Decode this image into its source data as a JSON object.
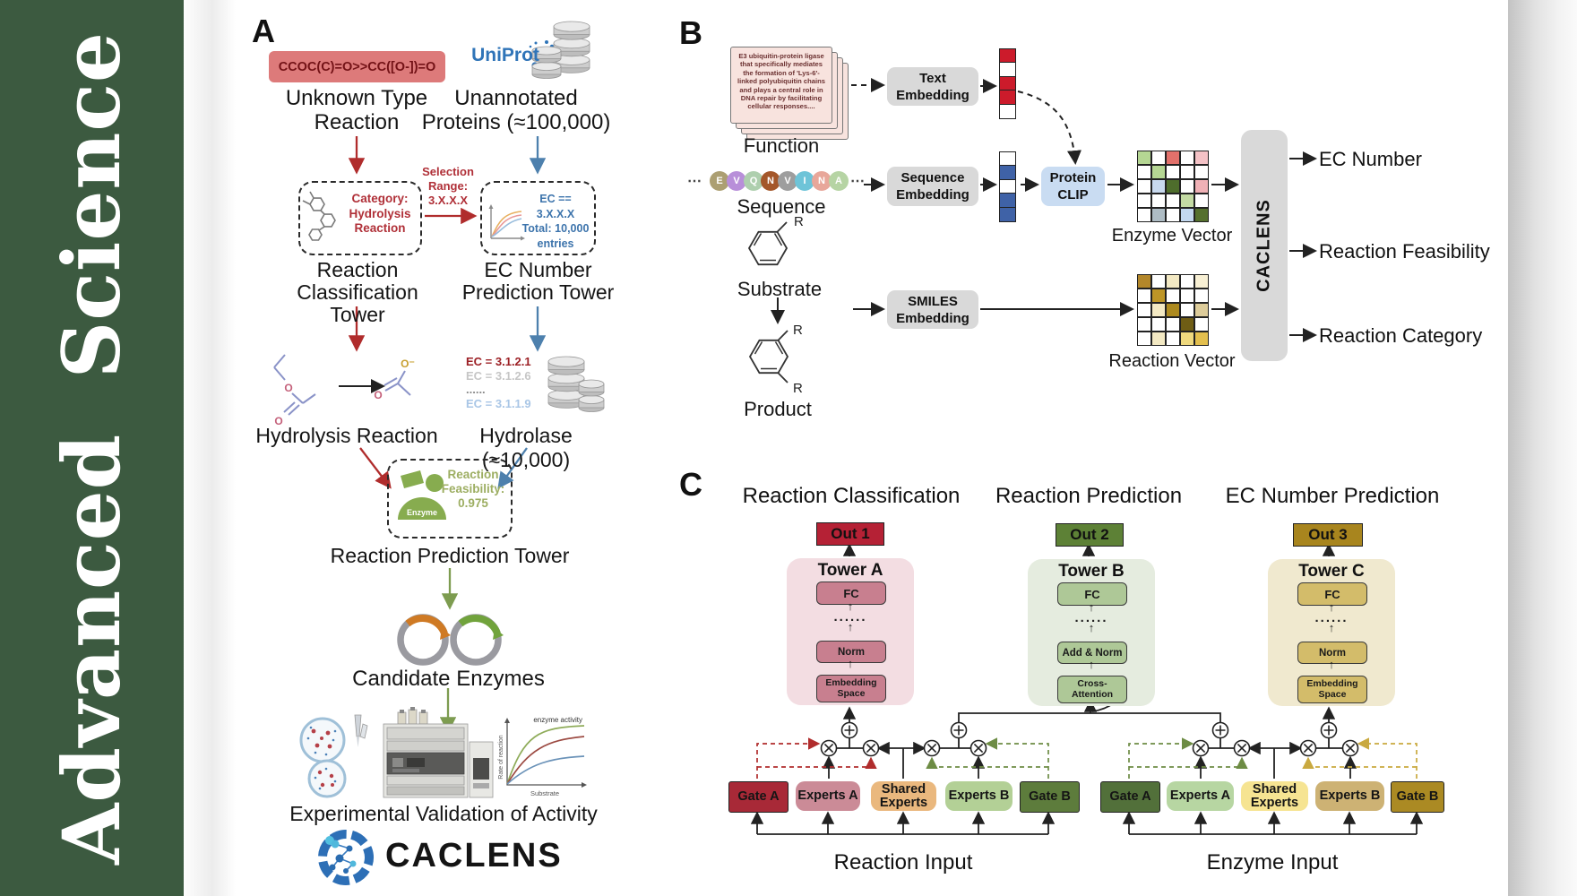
{
  "journal": "Advanced  Science",
  "brand": "CACLENS",
  "icons": {
    "arrow_up": "↑",
    "ellipsis": "⋯"
  },
  "colors": {
    "sidebar_green": "#3c5a40",
    "uniprot_blue": "#2f74b8",
    "red_accent": "#b02c2c",
    "blue_accent": "#4d80ad",
    "green_accent": "#7d9c50",
    "smiles_box_bg": "#dd7a7a",
    "out1": "#b52135",
    "out2": "#5d8136",
    "out3": "#a8851e",
    "towerA_bg": "#f3dde2",
    "towerB_bg": "#e5ecdf",
    "towerC_bg": "#f0e9cf",
    "protein_clip_bg": "#c9dcf2",
    "pill_bg": "#d9d9d9"
  },
  "panelA": {
    "label": "A",
    "smiles_box": "CCOC(C)=O>>CC([O-])=O",
    "unknown_reaction_label": "Unknown Type\nReaction",
    "uniprot_logo": "UniProt",
    "unannotated_label": "Unannotated\nProteins (≈100,000)",
    "selection_range": "Selection\nRange:\n3.X.X.X",
    "classification_box_text": "Category:\nHydrolysis\nReaction",
    "classification_tower_label": "Reaction\nClassification Tower",
    "ec_box_text": "EC == 3.X.X.X\nTotal: 10,000\nentries",
    "ec_tower_label": "EC Number\nPrediction Tower",
    "hydrolysis_label": "Hydrolysis Reaction",
    "ec_list": [
      "EC = 3.1.2.1",
      "EC = 3.1.2.6",
      "......",
      "EC = 3.1.1.9"
    ],
    "ec_list_colors": [
      "#9c2025",
      "#c6c6c6",
      "#8a8a8a",
      "#a9c6e6"
    ],
    "hydrolase_label": "Hydrolase (≈10,000)",
    "enzyme_icon_label": "Enzyme",
    "feasibility_text": "Reaction\nFeasibility:\n0.975",
    "prediction_tower_label": "Reaction Prediction Tower",
    "candidate_enzymes_label": "Candidate Enzymes",
    "validation_label": "Experimental Validation of Activity",
    "atoms": {
      "o": "O",
      "o_minus": "O⁻"
    },
    "miniplot": {
      "series_label": "enzyme activity",
      "ylabel": "Rate of reaction",
      "xlabel": "Substrate"
    }
  },
  "panelB": {
    "label": "B",
    "function_card": "E3 ubiquitin-protein ligase that specifically mediates the formation of 'Lys-6'-linked polyubiquitin chains and plays a central role in DNA repair by facilitating cellular responses....",
    "function_label": "Function",
    "sequence_label": "Sequence",
    "sequence": [
      {
        "letter": "E",
        "color": "#ac9f72"
      },
      {
        "letter": "V",
        "color": "#b88fd9"
      },
      {
        "letter": "Q",
        "color": "#aecfae"
      },
      {
        "letter": "N",
        "color": "#a4572a"
      },
      {
        "letter": "V",
        "color": "#9e9e9e"
      },
      {
        "letter": "I",
        "color": "#6ec4d8"
      },
      {
        "letter": "N",
        "color": "#e8a79a"
      },
      {
        "letter": "A",
        "color": "#b6d4a4"
      }
    ],
    "text_embedding": "Text\nEmbedding",
    "sequence_embedding": "Sequence\nEmbedding",
    "smiles_embedding": "SMILES\nEmbedding",
    "protein_clip": "Protein\nCLIP",
    "substrate_label": "Substrate",
    "product_label": "Product",
    "r_group": "R",
    "text_vector": [
      "#cc1b2b",
      "#ffffff",
      "#cc1b2b",
      "#cc1b2b",
      "#ffffff"
    ],
    "sequence_vector": [
      "#ffffff",
      "#3f62a7",
      "#ffffff",
      "#3f62a7",
      "#3f62a7"
    ],
    "enzyme_vector_label": "Enzyme Vector",
    "reaction_vector_label": "Reaction Vector",
    "enzyme_grid": [
      [
        "#b5d693",
        "#ffffff",
        "#e2716b",
        "#ffffff",
        "#f4c2c6"
      ],
      [
        "#ffffff",
        "#b5d693",
        "#ffffff",
        "#ffffff",
        "#ffffff"
      ],
      [
        "#ffffff",
        "#c8d9ee",
        "#4e6d2c",
        "#ffffff",
        "#f0b1b6"
      ],
      [
        "#ffffff",
        "#ffffff",
        "#ffffff",
        "#c4dba4",
        "#ffffff"
      ],
      [
        "#ffffff",
        "#aebcc4",
        "#ffffff",
        "#c3d8ef",
        "#55702e"
      ]
    ],
    "reaction_grid": [
      [
        "#b3872a",
        "#ffffff",
        "#f3e9c3",
        "#ffffff",
        "#f8f0d4"
      ],
      [
        "#ffffff",
        "#bd9527",
        "#ffffff",
        "#ffffff",
        "#ffffff"
      ],
      [
        "#ffffff",
        "#f3e9c3",
        "#ad8a1f",
        "#ffffff",
        "#ddcc9a"
      ],
      [
        "#ffffff",
        "#ffffff",
        "#ffffff",
        "#6f5d15",
        "#ffffff"
      ],
      [
        "#ffffff",
        "#f3e9c3",
        "#ffffff",
        "#efd97e",
        "#e3bf4e"
      ]
    ],
    "outputs": [
      "EC Number",
      "Reaction Feasibility",
      "Reaction Category"
    ]
  },
  "panelC": {
    "label": "C",
    "columns": [
      {
        "title": "Reaction Classification",
        "out": "Out 1",
        "tower": "Tower A",
        "fc": "FC",
        "dots": "......",
        "mid": "Norm",
        "bottom": "Embedding\nSpace"
      },
      {
        "title": "Reaction Prediction",
        "out": "Out 2",
        "tower": "Tower B",
        "fc": "FC",
        "dots": "......",
        "mid": "Add & Norm",
        "bottom": "Cross-\nAttention"
      },
      {
        "title": "EC Number Prediction",
        "out": "Out 3",
        "tower": "Tower C",
        "fc": "FC",
        "dots": "......",
        "mid": "Norm",
        "bottom": "Embedding\nSpace"
      }
    ],
    "groups": [
      {
        "label": "Reaction Input",
        "boxes": [
          {
            "t": "Gate A",
            "c": "#a82937"
          },
          {
            "t": "Experts A",
            "c": "#cb8b97"
          },
          {
            "t": "Shared\nExperts",
            "c": "#eab87e"
          },
          {
            "t": "Experts B",
            "c": "#b3d096"
          },
          {
            "t": "Gate B",
            "c": "#5d7c3c"
          }
        ]
      },
      {
        "label": "Enzyme Input",
        "boxes": [
          {
            "t": "Gate A",
            "c": "#52703a"
          },
          {
            "t": "Experts A",
            "c": "#b7d6a2"
          },
          {
            "t": "Shared\nExperts",
            "c": "#f6e492"
          },
          {
            "t": "Experts B",
            "c": "#cdb274"
          },
          {
            "t": "Gate B",
            "c": "#ab8a23"
          }
        ]
      }
    ]
  }
}
